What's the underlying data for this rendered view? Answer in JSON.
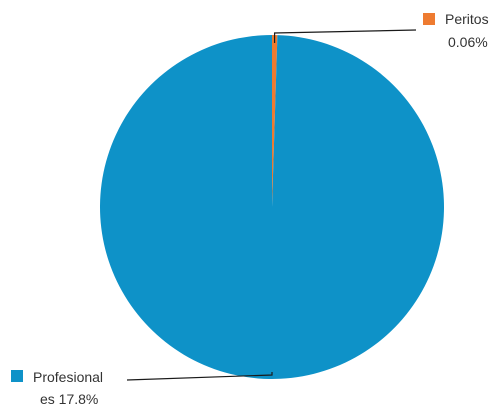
{
  "chart_data": {
    "type": "pie",
    "slices": [
      {
        "name": "Profesionales",
        "label_lines": [
          "Profesional",
          "es 17.8%"
        ],
        "value": 17.8,
        "color": "#0E92C8"
      },
      {
        "name": "Peritos",
        "label_lines": [
          "Peritos",
          "0.06%"
        ],
        "value": 0.06,
        "color": "#EE7B30"
      }
    ],
    "start_angle_deg": 0,
    "direction": "clockwise",
    "leader_line_color": "#1a1a1a"
  }
}
